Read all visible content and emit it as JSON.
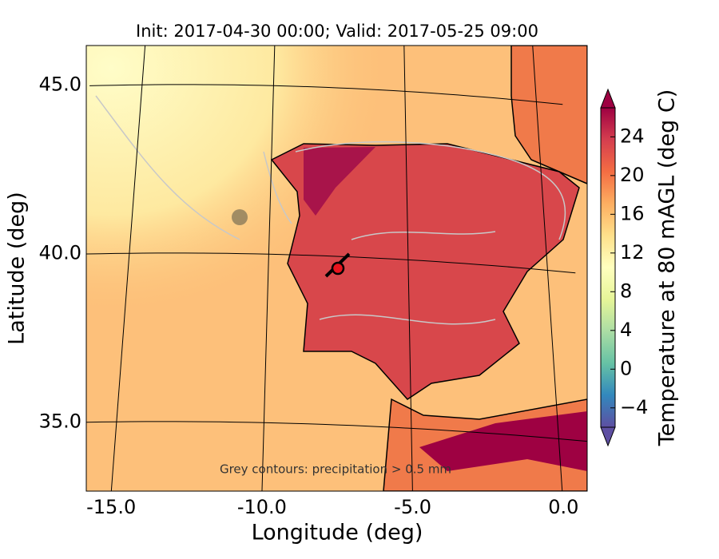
{
  "map": {
    "title": "Init: 2017-04-30 00:00; Valid: 2017-05-25 09:00",
    "xlabel": "Longitude (deg)",
    "ylabel": "Latitude (deg)",
    "xticks": [
      {
        "value": -15,
        "label": "-15.0"
      },
      {
        "value": -10,
        "label": "-10.0"
      },
      {
        "value": -5,
        "label": "-5.0"
      },
      {
        "value": 0,
        "label": "0.0"
      }
    ],
    "yticks": [
      {
        "value": 35,
        "label": "35.0"
      },
      {
        "value": 40,
        "label": "40.0"
      },
      {
        "value": 45,
        "label": "45.0"
      }
    ],
    "annotation": "Grey contours: precipitation > 0.5 mm",
    "colorbar": {
      "label": "Temperature at 80 mAGL (deg C)",
      "lim": [
        -6,
        27
      ],
      "ticks": [
        {
          "value": -4,
          "label": "−4"
        },
        0,
        4,
        8,
        12,
        16,
        20,
        24
      ]
    }
  }
}
